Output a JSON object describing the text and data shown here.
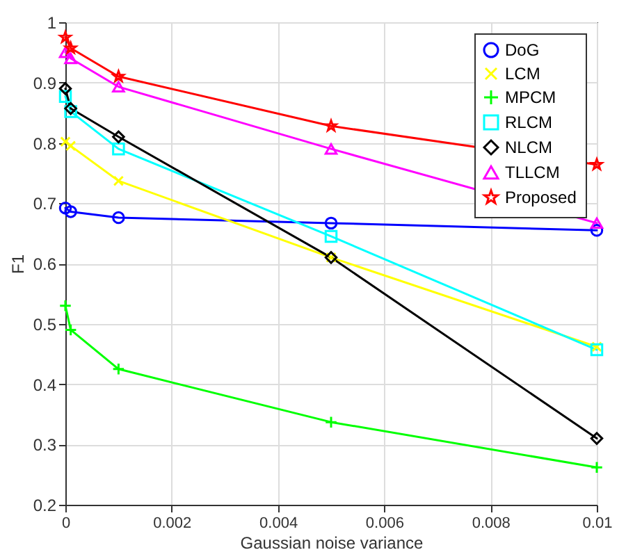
{
  "chart_data": {
    "type": "line",
    "xlabel": "Gaussian noise variance",
    "ylabel": "F1",
    "x": [
      0,
      0.0001,
      0.001,
      0.005,
      0.01
    ],
    "series": [
      {
        "name": "DoG",
        "color": "#0000ff",
        "marker": "circle",
        "values": [
          0.692,
          0.686,
          0.676,
          0.667,
          0.655
        ]
      },
      {
        "name": "LCM",
        "color": "#ffff00",
        "marker": "x",
        "values": [
          0.802,
          0.795,
          0.737,
          0.61,
          0.462
        ]
      },
      {
        "name": "MPCM",
        "color": "#00ff00",
        "marker": "cross",
        "values": [
          0.53,
          0.49,
          0.425,
          0.337,
          0.262
        ]
      },
      {
        "name": "RLCM",
        "color": "#00ffff",
        "marker": "square",
        "values": [
          0.877,
          0.852,
          0.79,
          0.645,
          0.457
        ]
      },
      {
        "name": "NLCM",
        "color": "#000000",
        "marker": "diamond",
        "values": [
          0.89,
          0.857,
          0.81,
          0.61,
          0.31
        ]
      },
      {
        "name": "TLLCM",
        "color": "#ff00ff",
        "marker": "triangle",
        "values": [
          0.95,
          0.94,
          0.893,
          0.79,
          0.667
        ]
      },
      {
        "name": "Proposed",
        "color": "#ff0000",
        "marker": "star",
        "values": [
          0.975,
          0.957,
          0.91,
          0.828,
          0.764
        ]
      }
    ],
    "xlim": [
      0,
      0.01
    ],
    "xticks": [
      0,
      0.002,
      0.004,
      0.006,
      0.008,
      0.01
    ],
    "ylim": [
      0.2,
      1
    ],
    "yticks": [
      0.2,
      0.3,
      0.4,
      0.5,
      0.6,
      0.7,
      0.8,
      0.9,
      1
    ],
    "grid": true,
    "legend": "top right",
    "line_style": "solid"
  }
}
